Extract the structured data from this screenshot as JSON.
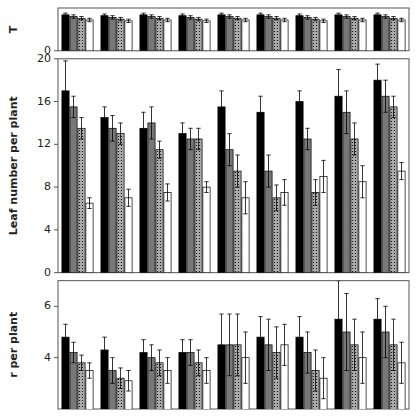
{
  "chart_data": [
    {
      "type": "bar",
      "ylabel": "T",
      "ylim": [
        0,
        0.5
      ],
      "yticks": [
        0
      ],
      "tick_labels": "y",
      "categories": [
        null,
        null,
        null,
        null,
        null,
        null,
        null,
        null,
        null
      ],
      "series": [
        {
          "color": "#000000",
          "values": [
            0.42,
            0.41,
            0.42,
            0.41,
            0.42,
            0.42,
            0.41,
            0.42,
            0.42
          ],
          "errors": [
            0.02,
            0.02,
            0.02,
            0.02,
            0.02,
            0.02,
            0.02,
            0.02,
            0.02
          ]
        },
        {
          "color": "#777777",
          "values": [
            0.4,
            0.39,
            0.4,
            0.39,
            0.4,
            0.4,
            0.39,
            0.4,
            0.4
          ],
          "errors": [
            0.02,
            0.02,
            0.02,
            0.02,
            0.02,
            0.02,
            0.02,
            0.02,
            0.02
          ]
        },
        {
          "color": "#aaaaaa",
          "values": [
            0.38,
            0.37,
            0.38,
            0.37,
            0.38,
            0.38,
            0.37,
            0.38,
            0.38
          ],
          "errors": [
            0.02,
            0.02,
            0.02,
            0.02,
            0.02,
            0.02,
            0.02,
            0.02,
            0.02
          ]
        },
        {
          "color": "#ffffff",
          "values": [
            0.36,
            0.35,
            0.36,
            0.35,
            0.36,
            0.36,
            0.35,
            0.36,
            0.36
          ],
          "errors": [
            0.02,
            0.02,
            0.02,
            0.02,
            0.02,
            0.02,
            0.02,
            0.02,
            0.02
          ]
        }
      ]
    },
    {
      "type": "bar",
      "ylabel": "Leaf number per plant",
      "ylim": [
        0,
        20
      ],
      "yticks": [
        0,
        4,
        8,
        12,
        16,
        20
      ],
      "tick_labels": "y",
      "categories": [
        null,
        null,
        null,
        null,
        null,
        null,
        null,
        null,
        null
      ],
      "series": [
        {
          "color": "#000000",
          "values": [
            17.0,
            14.5,
            13.5,
            13.0,
            15.5,
            15.0,
            16.0,
            16.5,
            18.0
          ],
          "errors": [
            2.8,
            1.0,
            1.5,
            1.0,
            1.5,
            1.5,
            1.0,
            2.5,
            1.5
          ]
        },
        {
          "color": "#777777",
          "values": [
            15.5,
            13.5,
            14.0,
            12.5,
            11.5,
            9.5,
            12.5,
            15.0,
            16.5
          ],
          "errors": [
            1.0,
            1.2,
            1.5,
            1.0,
            1.5,
            1.5,
            1.0,
            2.0,
            1.5
          ]
        },
        {
          "color": "#aaaaaa",
          "values": [
            13.5,
            13.0,
            11.5,
            12.5,
            9.5,
            7.0,
            7.5,
            12.5,
            15.5
          ],
          "errors": [
            1.0,
            1.0,
            0.8,
            1.0,
            1.5,
            1.2,
            1.2,
            1.5,
            1.0
          ]
        },
        {
          "color": "#ffffff",
          "values": [
            6.5,
            7.0,
            7.5,
            8.0,
            7.0,
            7.5,
            9.0,
            8.5,
            9.5
          ],
          "errors": [
            0.5,
            0.8,
            0.8,
            0.5,
            1.5,
            1.2,
            1.5,
            1.5,
            0.8
          ]
        }
      ]
    },
    {
      "type": "bar",
      "ylabel": "r per plant",
      "ylim": [
        2,
        7
      ],
      "yticks": [
        4,
        6
      ],
      "tick_labels": "y",
      "categories": [
        null,
        null,
        null,
        null,
        null,
        null,
        null,
        null,
        null
      ],
      "series": [
        {
          "color": "#000000",
          "values": [
            4.8,
            4.3,
            4.2,
            4.2,
            4.5,
            4.8,
            4.8,
            5.5,
            5.5
          ],
          "errors": [
            0.5,
            0.5,
            0.5,
            0.5,
            1.2,
            0.8,
            0.8,
            1.5,
            0.8
          ]
        },
        {
          "color": "#777777",
          "values": [
            4.2,
            3.5,
            4.0,
            4.2,
            4.5,
            4.5,
            4.2,
            5.0,
            5.0
          ],
          "errors": [
            0.4,
            0.5,
            0.5,
            0.5,
            1.2,
            1.0,
            0.8,
            1.5,
            1.0
          ]
        },
        {
          "color": "#aaaaaa",
          "values": [
            3.8,
            3.2,
            3.8,
            3.8,
            4.5,
            4.2,
            3.5,
            4.5,
            4.5
          ],
          "errors": [
            0.3,
            0.4,
            0.5,
            0.5,
            1.2,
            1.0,
            0.8,
            1.0,
            1.0
          ]
        },
        {
          "color": "#ffffff",
          "values": [
            3.5,
            3.1,
            3.5,
            3.5,
            4.0,
            4.5,
            3.2,
            4.0,
            3.8
          ],
          "errors": [
            0.3,
            0.4,
            0.5,
            0.5,
            1.0,
            0.8,
            0.8,
            1.0,
            0.8
          ]
        }
      ]
    }
  ]
}
